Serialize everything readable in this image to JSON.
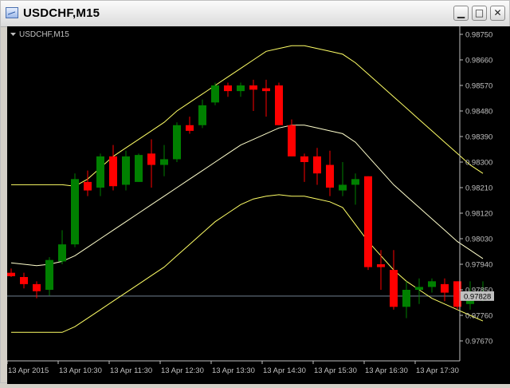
{
  "window": {
    "title": "USDCHF,M15",
    "minimize_glyph": "▁",
    "maximize_glyph": "□",
    "close_glyph": "✕",
    "app_icon": "chart-window-icon"
  },
  "chart_label": {
    "symbol_timeframe": "USDCHF,M15",
    "menu_icon": "triangle-down-icon"
  },
  "colors": {
    "background": "#000000",
    "axis": "#c0c0c0",
    "bull": "#008000",
    "bear": "#ff0000",
    "bands": "#ffff66",
    "bands_mid": "#ffffcc",
    "price_line": "#708090"
  },
  "chart_data": {
    "type": "candlestick",
    "symbol": "USDCHF",
    "timeframe": "M15",
    "y_ticks": [
      "0.98750",
      "0.98660",
      "0.98570",
      "0.98480",
      "0.98390",
      "0.98300",
      "0.98210",
      "0.98120",
      "0.98030",
      "0.97940",
      "0.97850",
      "0.97760",
      "0.97670"
    ],
    "x_ticks": [
      "13 Apr 2015",
      "13 Apr 10:30",
      "13 Apr 11:30",
      "13 Apr 12:30",
      "13 Apr 13:30",
      "13 Apr 14:30",
      "13 Apr 15:30",
      "13 Apr 16:30",
      "13 Apr 17:30"
    ],
    "current_price": "0.97828",
    "candles": [
      {
        "o": 0.9791,
        "h": 0.97925,
        "l": 0.97895,
        "c": 0.97898
      },
      {
        "o": 0.97895,
        "h": 0.9791,
        "l": 0.97855,
        "c": 0.9787
      },
      {
        "o": 0.9787,
        "h": 0.9788,
        "l": 0.9782,
        "c": 0.97845
      },
      {
        "o": 0.9785,
        "h": 0.97965,
        "l": 0.9783,
        "c": 0.97955
      },
      {
        "o": 0.9795,
        "h": 0.9806,
        "l": 0.9794,
        "c": 0.9801
      },
      {
        "o": 0.9801,
        "h": 0.9826,
        "l": 0.98,
        "c": 0.9824
      },
      {
        "o": 0.9823,
        "h": 0.9827,
        "l": 0.9818,
        "c": 0.982
      },
      {
        "o": 0.9821,
        "h": 0.9833,
        "l": 0.9818,
        "c": 0.9832
      },
      {
        "o": 0.9832,
        "h": 0.9836,
        "l": 0.982,
        "c": 0.98215
      },
      {
        "o": 0.9822,
        "h": 0.9834,
        "l": 0.982,
        "c": 0.9832
      },
      {
        "o": 0.9823,
        "h": 0.9833,
        "l": 0.9823,
        "c": 0.98325
      },
      {
        "o": 0.9833,
        "h": 0.9838,
        "l": 0.9821,
        "c": 0.9829
      },
      {
        "o": 0.9829,
        "h": 0.9836,
        "l": 0.9825,
        "c": 0.9831
      },
      {
        "o": 0.9831,
        "h": 0.9844,
        "l": 0.983,
        "c": 0.9843
      },
      {
        "o": 0.9843,
        "h": 0.9846,
        "l": 0.984,
        "c": 0.9841
      },
      {
        "o": 0.9843,
        "h": 0.9852,
        "l": 0.9842,
        "c": 0.985
      },
      {
        "o": 0.9851,
        "h": 0.9858,
        "l": 0.985,
        "c": 0.9857
      },
      {
        "o": 0.9857,
        "h": 0.9858,
        "l": 0.9853,
        "c": 0.9855
      },
      {
        "o": 0.9855,
        "h": 0.9858,
        "l": 0.9853,
        "c": 0.9857
      },
      {
        "o": 0.9857,
        "h": 0.9859,
        "l": 0.9848,
        "c": 0.98555
      },
      {
        "o": 0.9856,
        "h": 0.9859,
        "l": 0.9846,
        "c": 0.9855
      },
      {
        "o": 0.9857,
        "h": 0.9858,
        "l": 0.9843,
        "c": 0.9843
      },
      {
        "o": 0.9843,
        "h": 0.9845,
        "l": 0.9832,
        "c": 0.9832
      },
      {
        "o": 0.9832,
        "h": 0.9833,
        "l": 0.9823,
        "c": 0.983
      },
      {
        "o": 0.9832,
        "h": 0.9835,
        "l": 0.9822,
        "c": 0.9826
      },
      {
        "o": 0.9829,
        "h": 0.9834,
        "l": 0.9818,
        "c": 0.9821
      },
      {
        "o": 0.982,
        "h": 0.983,
        "l": 0.9818,
        "c": 0.9822
      },
      {
        "o": 0.9822,
        "h": 0.9826,
        "l": 0.9815,
        "c": 0.9824
      },
      {
        "o": 0.9825,
        "h": 0.9825,
        "l": 0.9792,
        "c": 0.9793
      },
      {
        "o": 0.9794,
        "h": 0.9799,
        "l": 0.9785,
        "c": 0.9793
      },
      {
        "o": 0.9792,
        "h": 0.9799,
        "l": 0.9778,
        "c": 0.9779
      },
      {
        "o": 0.9779,
        "h": 0.9788,
        "l": 0.9775,
        "c": 0.9785
      },
      {
        "o": 0.9785,
        "h": 0.9789,
        "l": 0.978,
        "c": 0.9786
      },
      {
        "o": 0.9786,
        "h": 0.9789,
        "l": 0.9784,
        "c": 0.9788
      },
      {
        "o": 0.9787,
        "h": 0.9789,
        "l": 0.9781,
        "c": 0.9784
      },
      {
        "o": 0.9788,
        "h": 0.9788,
        "l": 0.9778,
        "c": 0.9779
      },
      {
        "o": 0.978,
        "h": 0.9788,
        "l": 0.9778,
        "c": 0.9783
      },
      {
        "o": 0.9782,
        "h": 0.9788,
        "l": 0.9781,
        "c": 0.9783
      }
    ],
    "bands": {
      "upper": [
        0.9822,
        0.9822,
        0.9822,
        0.9822,
        0.9822,
        0.98215,
        0.9824,
        0.9828,
        0.9832,
        0.9835,
        0.9838,
        0.9841,
        0.9844,
        0.9848,
        0.9851,
        0.9854,
        0.9857,
        0.986,
        0.9863,
        0.9866,
        0.9869,
        0.987,
        0.9871,
        0.9871,
        0.987,
        0.9869,
        0.9868,
        0.9865,
        0.9861,
        0.9857,
        0.9853,
        0.9849,
        0.9845,
        0.9841,
        0.9837,
        0.9833,
        0.9829,
        0.9826
      ],
      "middle": [
        0.97945,
        0.9794,
        0.97935,
        0.9794,
        0.9795,
        0.9797,
        0.98,
        0.9803,
        0.9806,
        0.9809,
        0.9812,
        0.9815,
        0.9818,
        0.9821,
        0.9824,
        0.9827,
        0.983,
        0.9833,
        0.9836,
        0.9838,
        0.984,
        0.9842,
        0.9843,
        0.9843,
        0.9842,
        0.9841,
        0.984,
        0.9837,
        0.9832,
        0.9827,
        0.9822,
        0.9818,
        0.9814,
        0.981,
        0.9806,
        0.9802,
        0.9799,
        0.9796
      ],
      "lower": [
        0.977,
        0.977,
        0.977,
        0.977,
        0.977,
        0.9772,
        0.9775,
        0.9778,
        0.9781,
        0.9784,
        0.9787,
        0.979,
        0.9793,
        0.9797,
        0.9801,
        0.9805,
        0.9809,
        0.9812,
        0.9815,
        0.9817,
        0.9818,
        0.98185,
        0.9818,
        0.9818,
        0.9817,
        0.9816,
        0.9814,
        0.9808,
        0.9802,
        0.9797,
        0.9792,
        0.9788,
        0.9785,
        0.9782,
        0.978,
        0.9778,
        0.9776,
        0.9774
      ]
    }
  }
}
